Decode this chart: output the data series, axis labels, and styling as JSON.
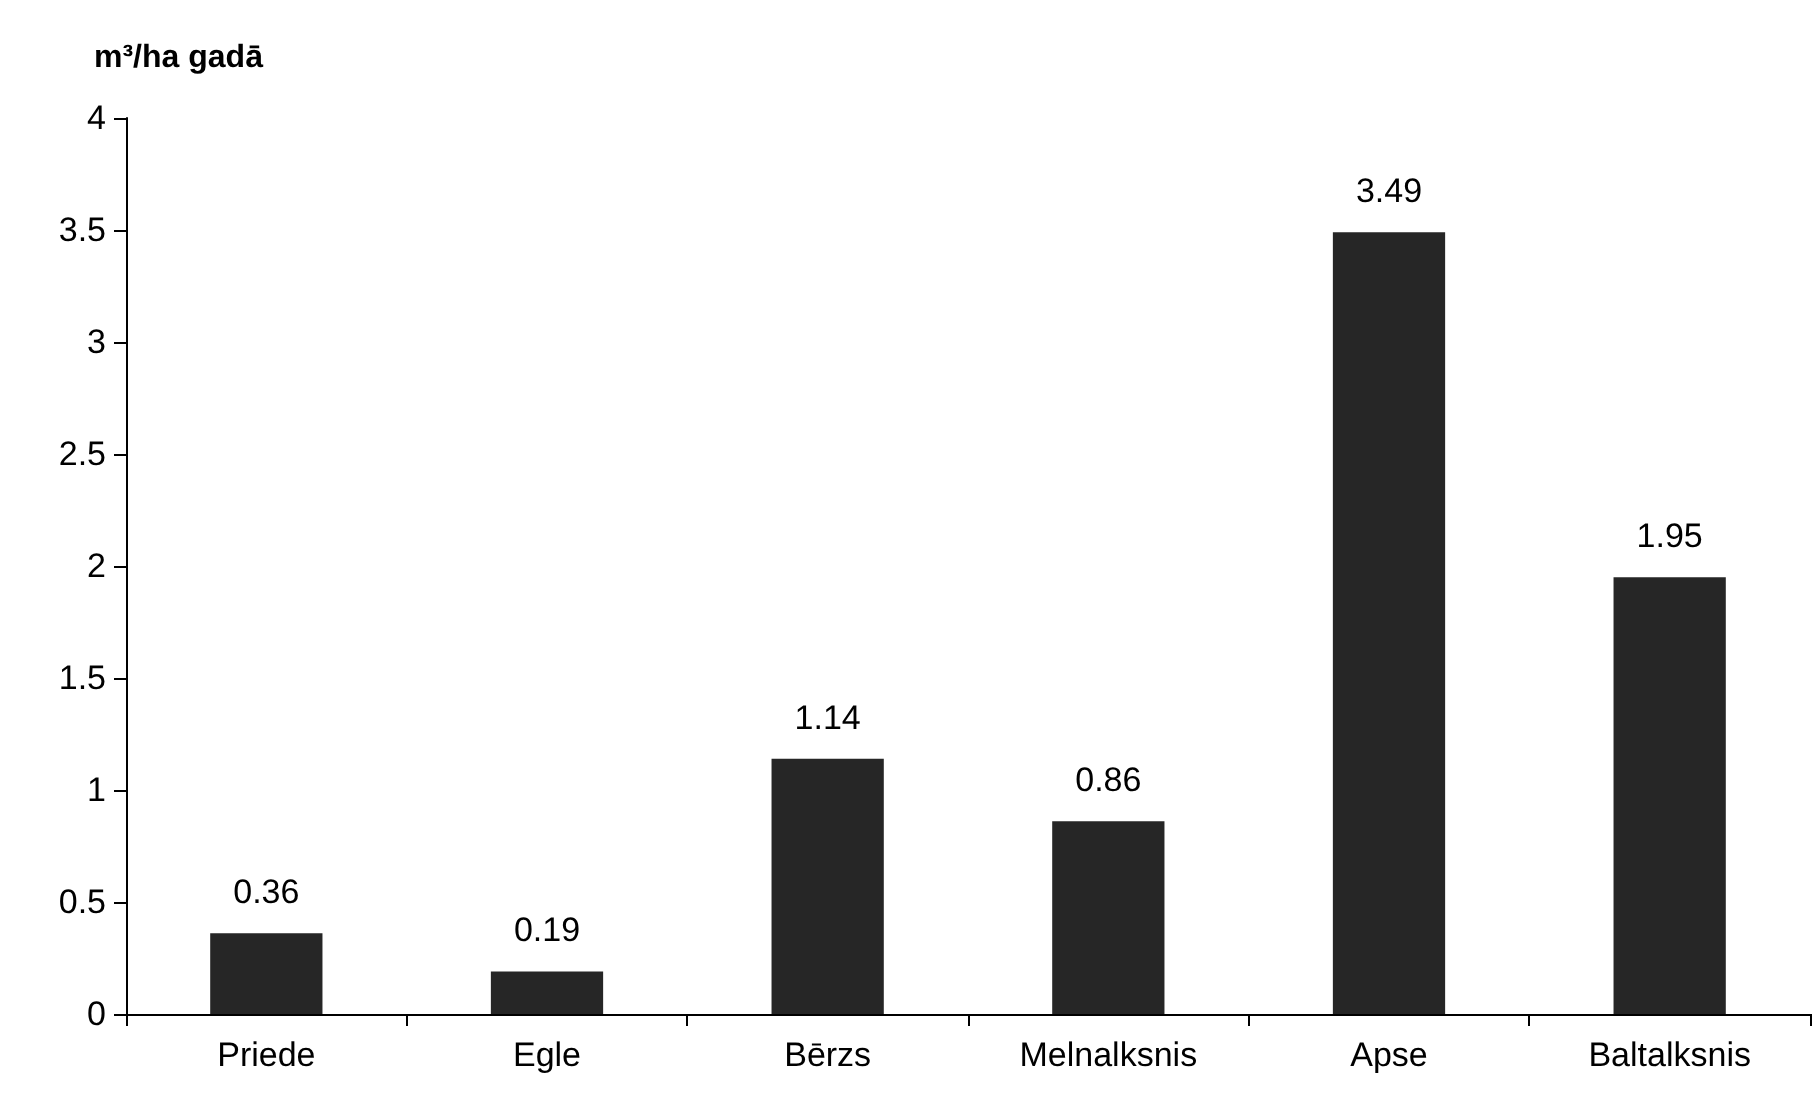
{
  "chart_data": {
    "type": "bar",
    "ylabel": "m³/ha gadā",
    "categories": [
      "Priede",
      "Egle",
      "Bērzs",
      "Melnalksnis",
      "Apse",
      "Baltalksnis"
    ],
    "values": [
      0.36,
      0.19,
      1.14,
      0.86,
      3.49,
      1.95
    ],
    "color": "#262626",
    "ylim": [
      0,
      4
    ],
    "yticks": [
      0,
      0.5,
      1,
      1.5,
      2,
      2.5,
      3,
      3.5,
      4
    ],
    "grid": false,
    "data_labels": true
  }
}
